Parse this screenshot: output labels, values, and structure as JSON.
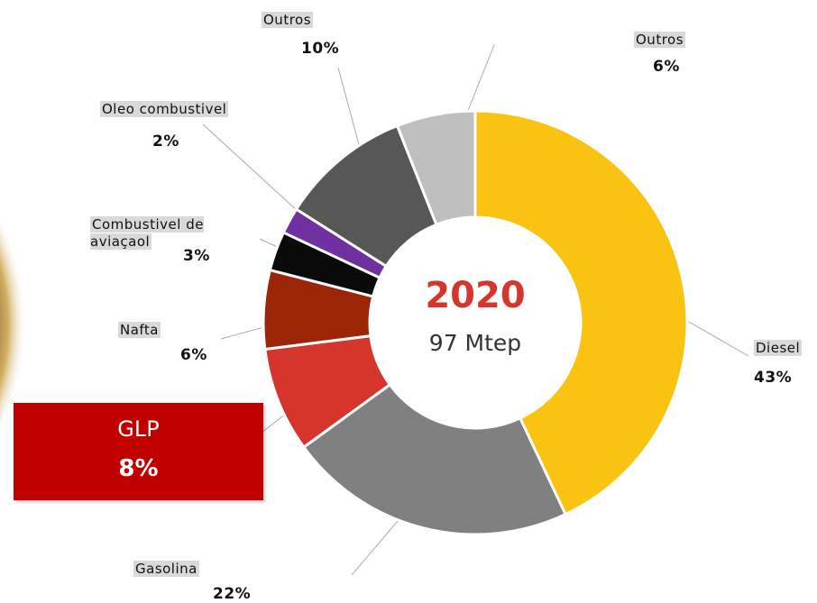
{
  "chart_data": {
    "type": "pie",
    "center_title": "2020",
    "center_subtitle": "97 Mtep",
    "categories": [
      "Diesel",
      "Gasolina",
      "GLP",
      "Nafta",
      "Combustivel de aviaçaol",
      "Oleo combustivel",
      "Outros",
      "Outros"
    ],
    "values": [
      43,
      22,
      8,
      6,
      3,
      2,
      10,
      6
    ],
    "value_labels": [
      "43%",
      "22%",
      "8%",
      "6%",
      "3%",
      "2%",
      "10%",
      "6%"
    ],
    "colors": [
      "#fbc311",
      "#808080",
      "#d5352a",
      "#9a2607",
      "#0a0a0a",
      "#7030a0",
      "#575757",
      "#bfbfbf"
    ],
    "donut": true
  }
}
